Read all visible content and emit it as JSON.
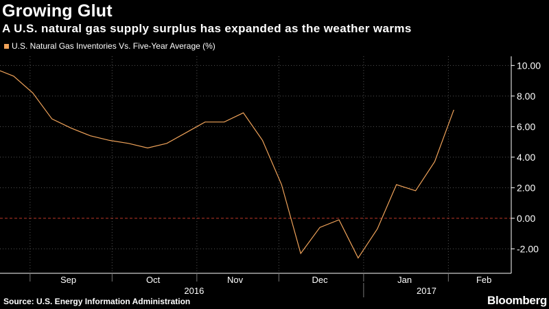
{
  "header": {
    "title": "Growing Glut",
    "subtitle": "A U.S. natural gas supply surplus has expanded as the weather warms"
  },
  "footer": {
    "source": "Source: U.S. Energy Information Administration",
    "brand": "Bloomberg"
  },
  "colors": {
    "background": "#000000",
    "line": "#f0a35a",
    "zero_line": "#c0392b",
    "grid": "#555555"
  },
  "chart_data": {
    "type": "line",
    "legend_position": "top-left",
    "grid": true,
    "y_axis_side": "right",
    "ylim": [
      -3.6,
      10.6
    ],
    "yticks": [
      10,
      8,
      6,
      4,
      2,
      0,
      -2
    ],
    "ytick_labels": [
      "10.00",
      "8.00",
      "6.00",
      "4.00",
      "2.00",
      "0.00",
      "-2.00"
    ],
    "xlim": [
      "2016-08-21",
      "2017-02-24"
    ],
    "xtick_labels": [
      {
        "label": "Sep",
        "date": "2016-09-15"
      },
      {
        "label": "Oct",
        "date": "2016-10-16"
      },
      {
        "label": "Nov",
        "date": "2016-11-15"
      },
      {
        "label": "Dec",
        "date": "2016-12-16"
      },
      {
        "label": "Jan",
        "date": "2017-01-16"
      },
      {
        "label": "Feb",
        "date": "2017-02-14"
      }
    ],
    "month_gridlines": [
      "2016-09-01",
      "2016-10-01",
      "2016-11-01",
      "2016-12-01",
      "2017-01-01",
      "2017-02-01"
    ],
    "year_labels": [
      {
        "label": "2016",
        "date": "2016-10-31"
      },
      {
        "label": "2017",
        "date": "2017-01-24"
      }
    ],
    "year_divider": "2017-01-01",
    "series": [
      {
        "name": "U.S. Natural Gas Inventories Vs. Five-Year Average (%)",
        "points": [
          [
            "2016-08-19",
            9.8
          ],
          [
            "2016-08-26",
            9.3
          ],
          [
            "2016-09-02",
            8.2
          ],
          [
            "2016-09-09",
            6.5
          ],
          [
            "2016-09-16",
            5.9
          ],
          [
            "2016-09-23",
            5.4
          ],
          [
            "2016-09-30",
            5.1
          ],
          [
            "2016-10-07",
            4.9
          ],
          [
            "2016-10-14",
            4.6
          ],
          [
            "2016-10-21",
            4.9
          ],
          [
            "2016-10-28",
            5.6
          ],
          [
            "2016-11-04",
            6.3
          ],
          [
            "2016-11-11",
            6.3
          ],
          [
            "2016-11-18",
            6.9
          ],
          [
            "2016-11-25",
            5.1
          ],
          [
            "2016-12-02",
            2.2
          ],
          [
            "2016-12-09",
            -2.3
          ],
          [
            "2016-12-16",
            -0.6
          ],
          [
            "2016-12-23",
            -0.1
          ],
          [
            "2016-12-30",
            -2.6
          ],
          [
            "2017-01-06",
            -0.7
          ],
          [
            "2017-01-13",
            2.2
          ],
          [
            "2017-01-20",
            1.8
          ],
          [
            "2017-01-27",
            3.7
          ],
          [
            "2017-02-03",
            7.1
          ]
        ]
      }
    ]
  }
}
